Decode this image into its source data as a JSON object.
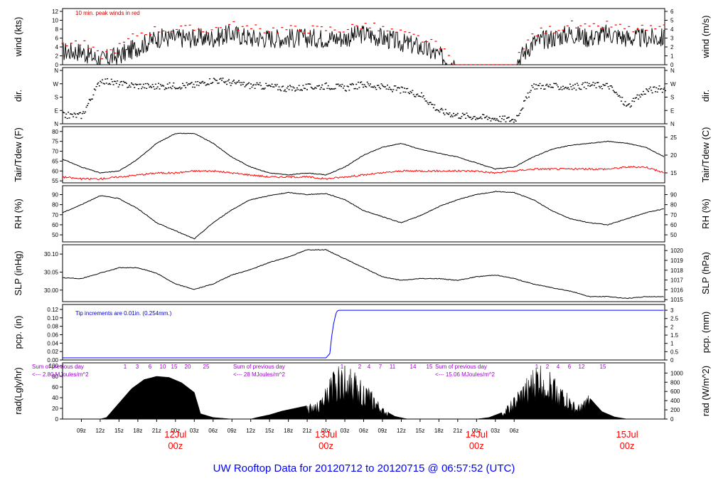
{
  "footer_title": "UW Rooftop Data for 20120712  to  20120715 @ 06:57:52  (UTC)",
  "colors": {
    "axis": "#000000",
    "dew": "#ff0000",
    "pcp": "#0000ff",
    "peak": "#ff0000",
    "day_label": "#ff0000",
    "rad_text": "#9900cc"
  },
  "chart_data": {
    "type": "line",
    "x_axis": {
      "unit": "UTC hour",
      "hour_ticks": [
        "09z",
        "12z",
        "15z",
        "18z",
        "21z",
        "00z",
        "03z",
        "06z",
        "09z",
        "12z",
        "15z",
        "18z",
        "21z",
        "00z",
        "03z",
        "06z",
        "09z",
        "12z",
        "15z",
        "18z",
        "21z",
        "00z",
        "03z",
        "06z"
      ],
      "day_labels": [
        {
          "date": "12Jul",
          "time": "00z"
        },
        {
          "date": "13Jul",
          "time": "00z"
        },
        {
          "date": "14Jul",
          "time": "00z"
        },
        {
          "date": "15Jul",
          "time": "00z"
        }
      ]
    },
    "panels": [
      {
        "key": "wind",
        "ylabel": "wind (kts)",
        "ylabel_right": "wind (m/s)",
        "ylim": [
          0,
          12
        ],
        "yticks": [
          "0",
          "2",
          "4",
          "6",
          "8",
          "10",
          "12"
        ],
        "ylim_right": [
          0,
          6
        ],
        "yticks_right": [
          "0",
          "1",
          "2",
          "3",
          "4",
          "5",
          "6"
        ],
        "annotation": "10 min. peak winds in red",
        "series": [
          {
            "name": "wind speed",
            "color": "#000000",
            "x": [
              6,
              9,
              12,
              15,
              18,
              21,
              24,
              27,
              30,
              33,
              36,
              39,
              42,
              45,
              48,
              51,
              54,
              57,
              60,
              63,
              66,
              69,
              72,
              75,
              78,
              81,
              84,
              87,
              90,
              93,
              96,
              99,
              102
            ],
            "y": [
              3,
              3,
              1,
              2,
              4,
              6,
              6,
              6,
              6,
              7,
              6,
              6,
              6,
              6,
              6,
              6,
              7,
              6,
              5,
              4,
              2,
              0,
              0,
              0,
              0,
              5,
              6,
              7,
              6,
              7,
              6,
              6,
              6
            ]
          },
          {
            "name": "10 min. peak winds",
            "color": "#ff0000",
            "x": [
              6,
              9,
              12,
              15,
              18,
              21,
              24,
              27,
              30,
              33,
              36,
              39,
              42,
              45,
              48,
              51,
              54,
              57,
              60,
              63,
              66,
              69,
              72,
              75,
              78,
              81,
              84,
              87,
              90,
              93,
              96,
              99,
              102
            ],
            "y": [
              5,
              5,
              2,
              4,
              7,
              8,
              8,
              8,
              8,
              9,
              8,
              8,
              8,
              8,
              8,
              8,
              9,
              8,
              7,
              6,
              4,
              0,
              0,
              0,
              0,
              7,
              8,
              9,
              8,
              9,
              8,
              8,
              8
            ]
          }
        ]
      },
      {
        "key": "dir",
        "ylabel": "dir.",
        "ylabel_right": "dir.",
        "ylim": [
          0,
          360
        ],
        "yticks": [
          "N",
          "E",
          "S",
          "W",
          "N"
        ],
        "yticks_right": [
          "N",
          "E",
          "S",
          "W",
          "N"
        ],
        "series": [
          {
            "name": "wind direction",
            "color": "#000000",
            "x": [
              6,
              9,
              12,
              15,
              18,
              21,
              24,
              27,
              30,
              33,
              36,
              39,
              42,
              45,
              48,
              51,
              54,
              57,
              60,
              63,
              66,
              69,
              72,
              75,
              78,
              81,
              84,
              87,
              90,
              93,
              96,
              99,
              102
            ],
            "y": [
              60,
              60,
              300,
              270,
              260,
              255,
              260,
              265,
              300,
              280,
              260,
              255,
              240,
              250,
              260,
              245,
              270,
              250,
              230,
              200,
              90,
              60,
              50,
              40,
              30,
              260,
              255,
              250,
              265,
              260,
              120,
              230,
              240
            ]
          }
        ]
      },
      {
        "key": "temp",
        "ylabel": "Tair/Tdew (F)",
        "ylabel_right": "Tair/Tdew (C)",
        "ylim": [
          54,
          81
        ],
        "yticks": [
          "55",
          "60",
          "65",
          "70",
          "75",
          "80"
        ],
        "ylim_right": [
          12.2,
          27.2
        ],
        "yticks_right": [
          "15",
          "20",
          "25"
        ],
        "series": [
          {
            "name": "Tair",
            "color": "#000000",
            "x": [
              6,
              9,
              12,
              15,
              18,
              21,
              24,
              27,
              30,
              33,
              36,
              39,
              42,
              45,
              48,
              51,
              54,
              57,
              60,
              63,
              66,
              69,
              72,
              75,
              78,
              81,
              84,
              87,
              90,
              93,
              96,
              99,
              102
            ],
            "y": [
              66,
              62,
              59,
              60,
              66,
              74,
              79,
              79,
              74,
              67,
              62,
              59,
              58,
              59,
              58,
              62,
              68,
              72,
              74,
              71,
              69,
              67,
              64,
              61,
              62,
              67,
              71,
              73,
              74,
              75,
              74,
              72,
              67
            ]
          },
          {
            "name": "Tdew",
            "color": "#ff0000",
            "x": [
              6,
              9,
              12,
              15,
              18,
              21,
              24,
              27,
              30,
              33,
              36,
              39,
              42,
              45,
              48,
              51,
              54,
              57,
              60,
              63,
              66,
              69,
              72,
              75,
              78,
              81,
              84,
              87,
              90,
              93,
              96,
              99,
              102
            ],
            "y": [
              57,
              56,
              56,
              57,
              58,
              59,
              59,
              60,
              60,
              59,
              58,
              57,
              57,
              57,
              56,
              57,
              58,
              59,
              60,
              60,
              60,
              60,
              60,
              59,
              60,
              61,
              61,
              61,
              61,
              61,
              62,
              62,
              59
            ]
          }
        ]
      },
      {
        "key": "rh",
        "ylabel": "RH (%)",
        "ylabel_right": "RH (%)",
        "ylim": [
          43,
          96
        ],
        "yticks": [
          "50",
          "60",
          "70",
          "80",
          "90"
        ],
        "yticks_right": [
          "50",
          "60",
          "70",
          "80",
          "90"
        ],
        "series": [
          {
            "name": "RH",
            "color": "#000000",
            "x": [
              6,
              9,
              12,
              15,
              18,
              21,
              24,
              27,
              30,
              33,
              36,
              39,
              42,
              45,
              48,
              51,
              54,
              57,
              60,
              63,
              66,
              69,
              72,
              75,
              78,
              81,
              84,
              87,
              90,
              93,
              96,
              99,
              102
            ],
            "y": [
              72,
              80,
              89,
              86,
              76,
              62,
              54,
              46,
              62,
              75,
              85,
              89,
              92,
              90,
              91,
              85,
              74,
              68,
              62,
              69,
              78,
              85,
              90,
              93,
              92,
              85,
              74,
              66,
              62,
              60,
              66,
              72,
              76
            ]
          }
        ]
      },
      {
        "key": "slp",
        "ylabel": "SLP (inHg)",
        "ylabel_right": "SLP (hPa)",
        "ylim": [
          29.968,
          30.118
        ],
        "yticks": [
          "30.00",
          "30.05",
          "30.10"
        ],
        "ylim_right": [
          1014.8,
          1020.3
        ],
        "yticks_right": [
          "1015",
          "1016",
          "1017",
          "1018",
          "1019",
          "1020"
        ],
        "series": [
          {
            "name": "SLP",
            "color": "#000000",
            "x": [
              6,
              9,
              12,
              15,
              18,
              21,
              24,
              27,
              30,
              33,
              36,
              39,
              42,
              45,
              48,
              51,
              54,
              57,
              60,
              63,
              66,
              69,
              72,
              75,
              78,
              81,
              84,
              87,
              90,
              93,
              96,
              99,
              102
            ],
            "y": [
              30.034,
              30.032,
              30.047,
              30.062,
              30.062,
              30.047,
              30.017,
              30.002,
              30.017,
              30.042,
              30.057,
              30.077,
              30.092,
              30.112,
              30.112,
              30.087,
              30.062,
              30.037,
              30.027,
              30.032,
              30.032,
              30.027,
              30.037,
              30.042,
              30.032,
              30.017,
              30.007,
              29.997,
              29.982,
              29.982,
              29.977,
              29.982,
              29.982
            ]
          }
        ]
      },
      {
        "key": "pcp",
        "ylabel": "pcp. (in)",
        "ylabel_right": "pcp. (mm)",
        "ylim": [
          0,
          0.125
        ],
        "yticks": [
          "0.00",
          "0.02",
          "0.04",
          "0.06",
          "0.08",
          "0.10",
          "0.12"
        ],
        "ylim_right": [
          0,
          3.175
        ],
        "yticks_right": [
          "0",
          "0.5",
          "1",
          "1.5",
          "2",
          "2.5",
          "3"
        ],
        "annotation": "Tip increments are 0.01in. (0.254mm.)",
        "series": [
          {
            "name": "pcp",
            "color": "#0000ff",
            "x": [
              6,
              30,
              48,
              48.6,
              48.9,
              49.2,
              49.5,
              49.7,
              50,
              51,
              60,
              84,
              102
            ],
            "y": [
              0.005,
              0.005,
              0.005,
              0.015,
              0.055,
              0.085,
              0.105,
              0.115,
              0.118,
              0.118,
              0.118,
              0.118,
              0.118
            ]
          }
        ]
      },
      {
        "key": "rad",
        "ylabel": "rad(Lgly/hr)",
        "ylabel_right": "rad (W/m^2)",
        "ylim": [
          0,
          100
        ],
        "yticks": [
          "0",
          "20",
          "40",
          "60",
          "80",
          "100"
        ],
        "ylim_right": [
          0,
          1160
        ],
        "yticks_right": [
          "0",
          "200",
          "400",
          "600",
          "800",
          "1000"
        ],
        "day_notes": [
          {
            "line1": "Sum of previous day",
            "line2": "<--- 2.80 MJoules/m^2"
          },
          {
            "line1": "Sum of previous day",
            "line2": "<--- 28 MJoules/m^2"
          },
          {
            "line1": "Sum of previous day",
            "line2": "<--- 15.06 MJoules/m^2"
          }
        ],
        "hour_labels": [
          [
            "1",
            "3",
            "6",
            "10",
            "15",
            "20",
            "25"
          ],
          [
            "1",
            "2",
            "4",
            "7",
            "11",
            "14",
            "15"
          ],
          [
            "1",
            "2",
            "4",
            "6",
            "12",
            "15"
          ]
        ],
        "series": [
          {
            "name": "radiation",
            "color": "#000000",
            "x": [
              12,
              13,
              15,
              17,
              19,
              21,
              23,
              25,
              27,
              28,
              30,
              33,
              36,
              37,
              39,
              41,
              43,
              45,
              47,
              49,
              51,
              53,
              55,
              57,
              59,
              61,
              62,
              66,
              69,
              72,
              74,
              76,
              78,
              80,
              82,
              84,
              86,
              88,
              90,
              92,
              94,
              96,
              98
            ],
            "y": [
              0,
              3,
              30,
              57,
              74,
              80,
              78,
              68,
              50,
              10,
              3,
              0,
              0,
              3,
              8,
              15,
              20,
              25,
              28,
              75,
              90,
              70,
              48,
              18,
              5,
              0,
              0,
              0,
              0,
              0,
              3,
              12,
              35,
              65,
              92,
              75,
              48,
              20,
              40,
              14,
              4,
              0,
              0
            ]
          }
        ]
      }
    ]
  }
}
